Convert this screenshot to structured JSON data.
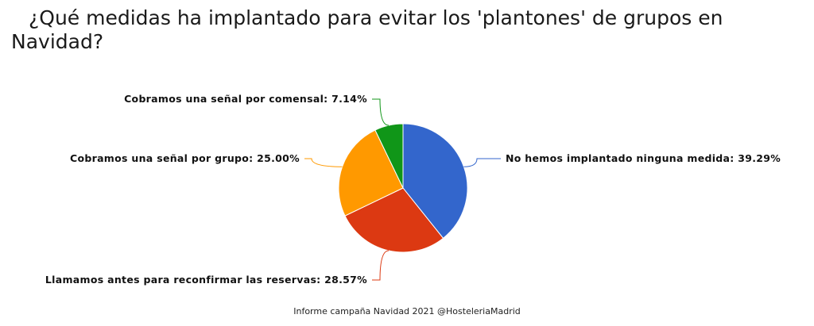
{
  "chart_data": {
    "type": "pie",
    "title": "¿Qué medidas ha implantado para evitar los 'plantones' de grupos en Navidad?",
    "slices": [
      {
        "label": "No hemos implantado ninguna medida",
        "value": 39.29,
        "display": "No hemos implantado ninguna medida: 39.29%",
        "color": "#3366cc"
      },
      {
        "label": "Llamamos antes para reconfirmar las reservas",
        "value": 28.57,
        "display": "Llamamos antes para reconfirmar las reservas: 28.57%",
        "color": "#dc3912"
      },
      {
        "label": "Cobramos una señal por grupo",
        "value": 25.0,
        "display": "Cobramos una señal por grupo: 25.00%",
        "color": "#ff9900"
      },
      {
        "label": "Cobramos una señal por comensal",
        "value": 7.14,
        "display": "Cobramos una señal por comensal: 7.14%",
        "color": "#109618"
      }
    ],
    "start_angle": "12 o'clock",
    "direction": "clockwise",
    "legend": "none (labels on leader lines)"
  },
  "footer": "Informe campaña Navidad 2021 @HosteleriaMadrid"
}
